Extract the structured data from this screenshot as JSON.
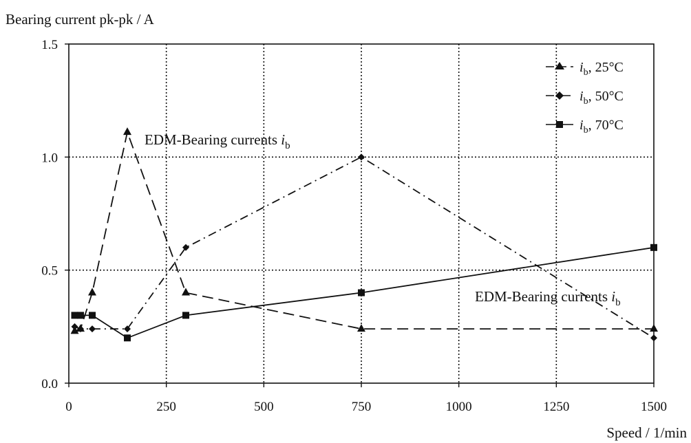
{
  "chart_data": {
    "type": "line",
    "ylabel": "Bearing current pk-pk / A",
    "xlabel": "Speed / 1/min",
    "xlim": [
      0,
      1500
    ],
    "ylim": [
      0,
      1.5
    ],
    "x_ticks": [
      "0",
      "250",
      "500",
      "750",
      "1000",
      "1250",
      "1500"
    ],
    "y_ticks": [
      "0.0",
      "0.5",
      "1.0",
      "1.5"
    ],
    "grid": true,
    "legend_position": "top-right",
    "series": [
      {
        "name_main": "i",
        "name_sub": "b",
        "name_rest": ", 25°C",
        "marker": "triangle",
        "dash": "dashed",
        "x": [
          15,
          30,
          60,
          150,
          300,
          750,
          1500
        ],
        "y": [
          0.23,
          0.24,
          0.4,
          1.11,
          0.4,
          0.24,
          0.24
        ]
      },
      {
        "name_main": "i",
        "name_sub": "b",
        "name_rest": ", 50°C",
        "marker": "diamond",
        "dash": "dashdot",
        "x": [
          15,
          30,
          60,
          150,
          300,
          750,
          1500
        ],
        "y": [
          0.25,
          0.24,
          0.24,
          0.24,
          0.6,
          1.0,
          0.2
        ]
      },
      {
        "name_main": "i",
        "name_sub": "b",
        "name_rest": ", 70°C",
        "marker": "square",
        "dash": "solid",
        "x": [
          15,
          30,
          60,
          150,
          300,
          750,
          1500
        ],
        "y": [
          0.3,
          0.3,
          0.3,
          0.2,
          0.3,
          0.4,
          0.6
        ]
      }
    ],
    "annotations": [
      {
        "text": "EDM-Bearing currents ",
        "italic": "i",
        "sub": "b"
      },
      {
        "text": "EDM-Bearing currents ",
        "italic": "i",
        "sub": "b"
      }
    ]
  },
  "colors": {
    "line": "#111111",
    "grid": "#111111",
    "background": "#ffffff"
  }
}
